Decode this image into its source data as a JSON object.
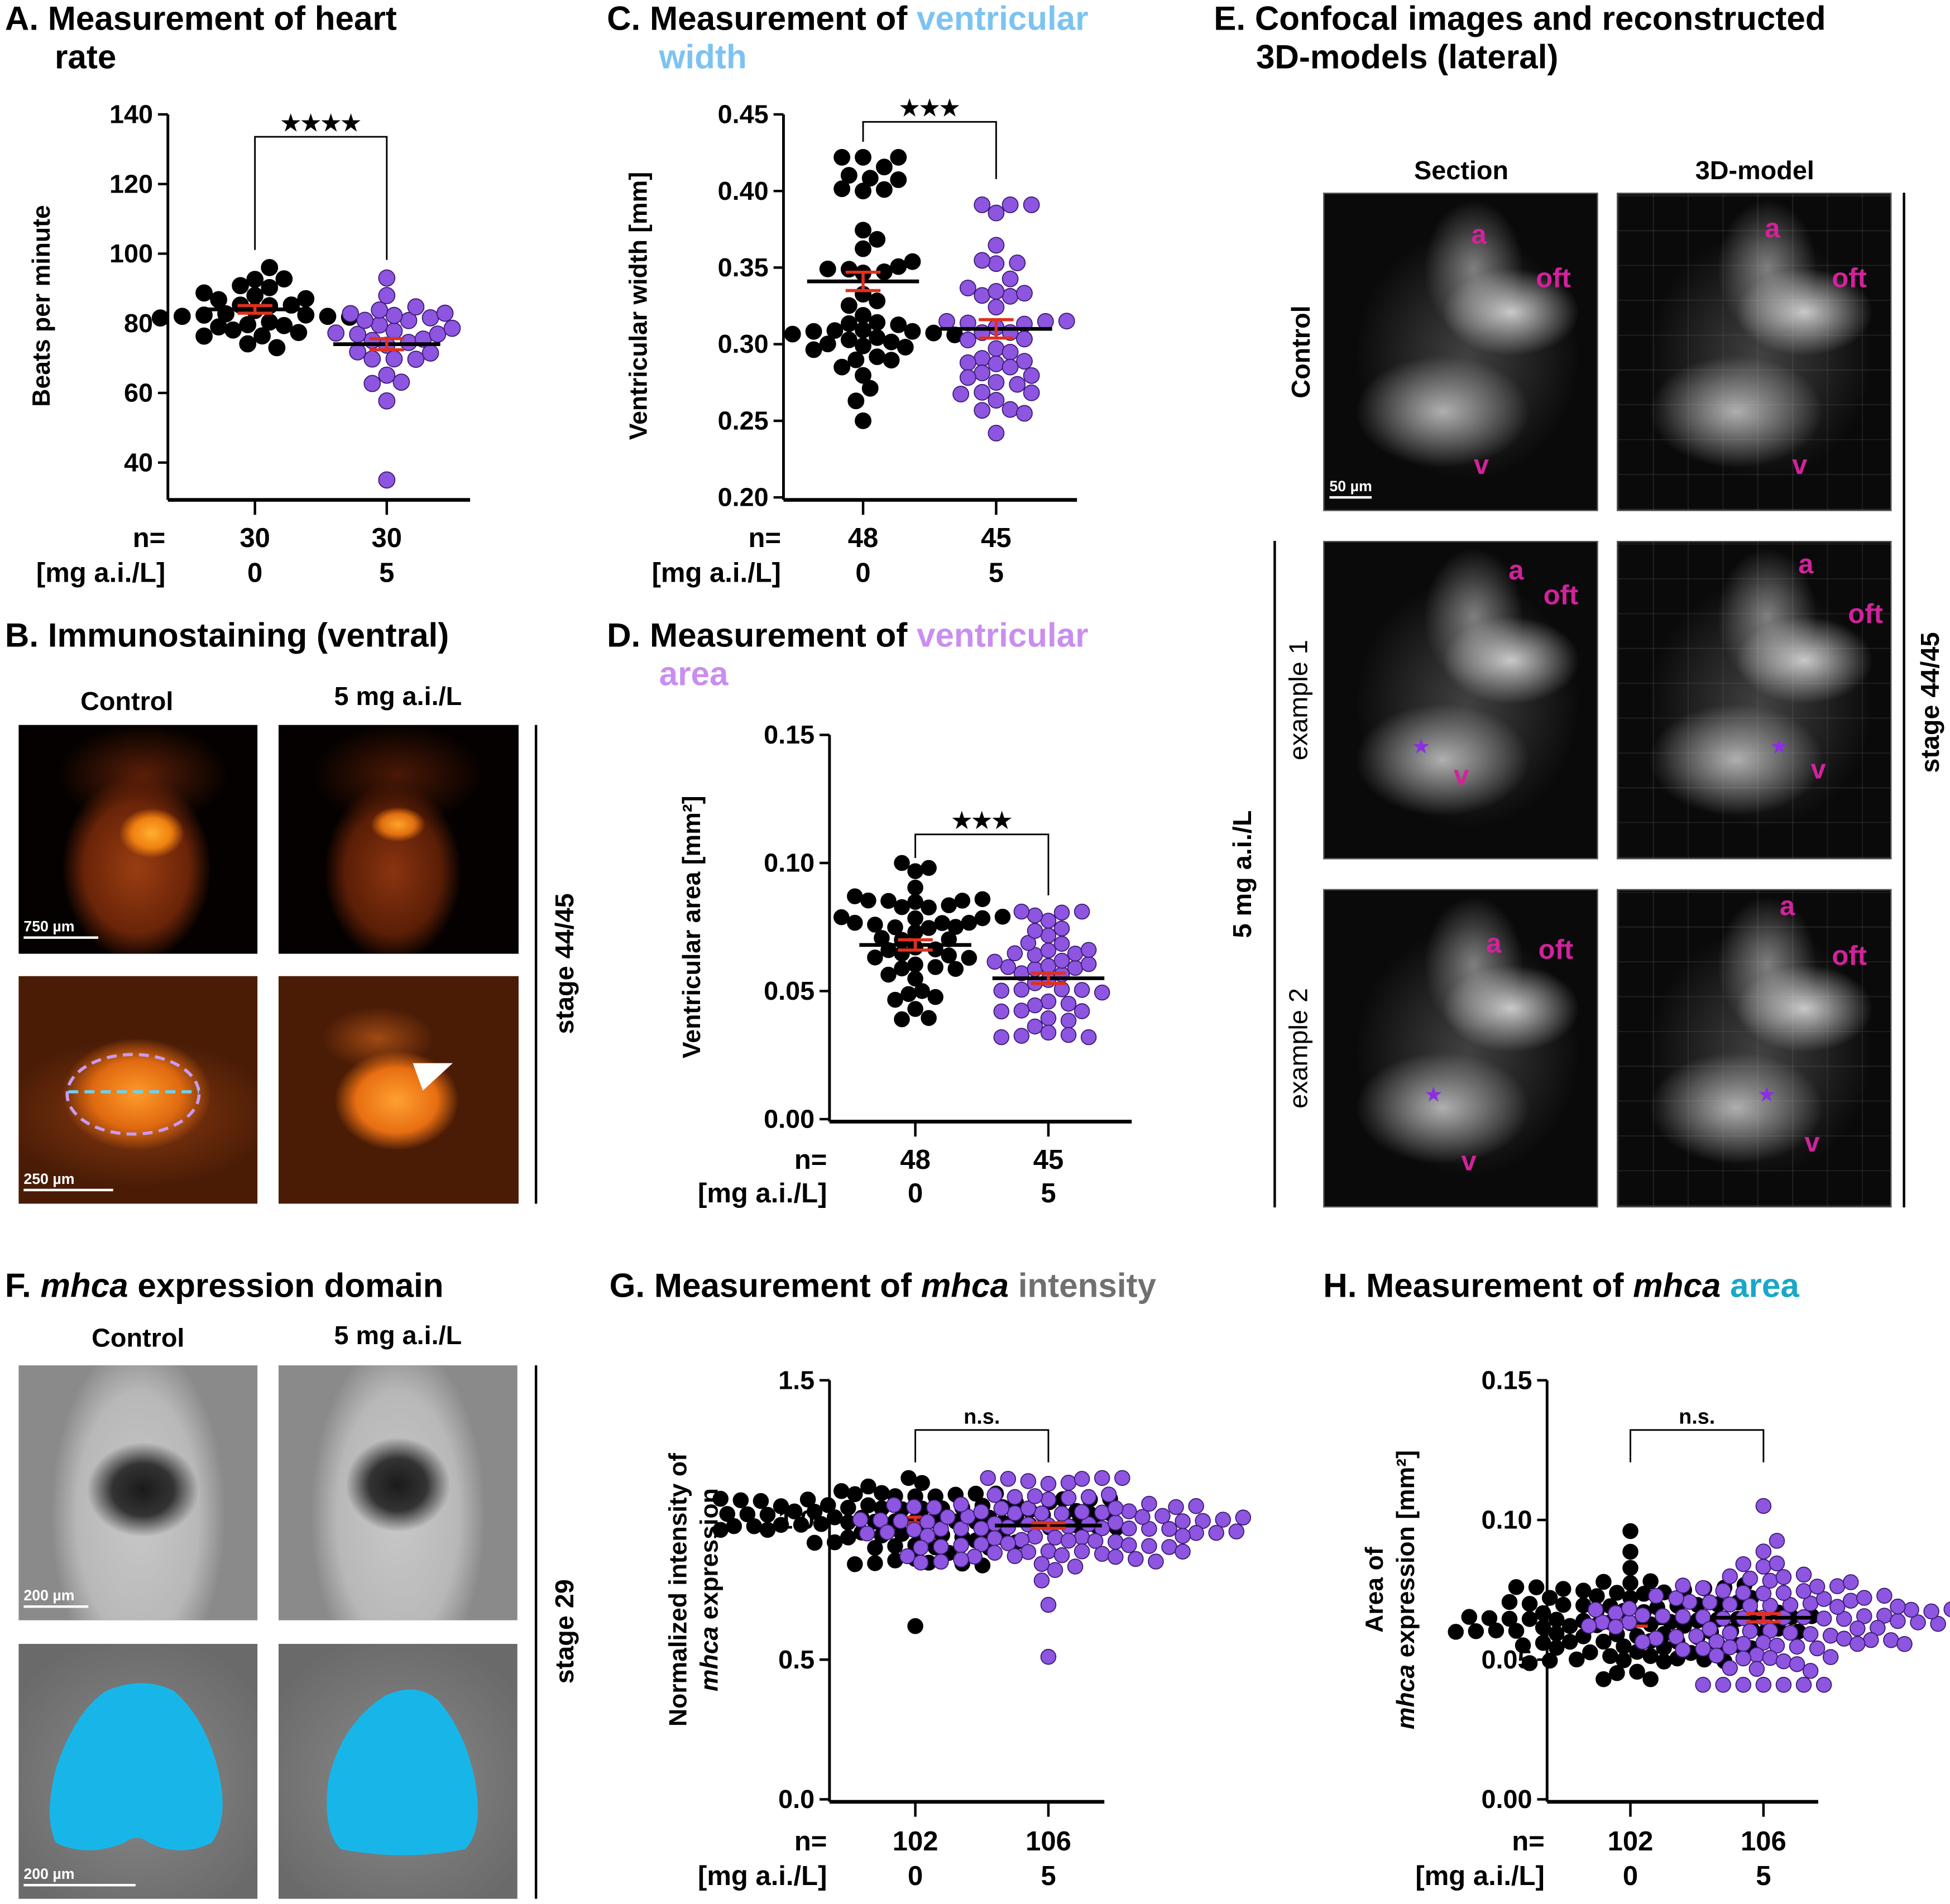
{
  "panels": {
    "A": {
      "label": "A.",
      "title_line1": "Measurement of heart",
      "title_line2": "rate"
    },
    "B": {
      "label": "B.",
      "title": "Immunostaining (ventral)",
      "columns": [
        "Control",
        "5 mg a.i./L"
      ],
      "stage": "stage 44/45",
      "scale_bars": [
        "750 µm",
        "250 µm"
      ]
    },
    "C": {
      "label": "C.",
      "title_pre": "Measurement of ",
      "title_highlight_1": "ventricular",
      "title_highlight_2": "width",
      "highlight_color": "#7cc3f2"
    },
    "D": {
      "label": "D.",
      "title_pre": "Measurement of ",
      "title_highlight_1": "ventricular",
      "title_highlight_2": "area",
      "highlight_color": "#c98ef0"
    },
    "E": {
      "label": "E.",
      "title_line1": "Confocal images and reconstructed",
      "title_line2": "3D-models (lateral)",
      "columns": [
        "Section",
        "3D-model"
      ],
      "rows": [
        "Control",
        "example 1",
        "example 2"
      ],
      "group_label": "5 mg a.i./L",
      "stage": "stage 44/45",
      "scale_bar": "50 µm",
      "annotations": {
        "atrium": "a",
        "outflow_tract": "oft",
        "ventricle": "v",
        "marker": "★"
      },
      "annotation_color": "#d2229c",
      "marker_color": "#8b2fe0"
    },
    "F": {
      "label": "F.",
      "title_italic": "mhca",
      "title_rest": " expression domain",
      "columns": [
        "Control",
        "5 mg a.i./L"
      ],
      "stage": "stage 29",
      "scale_bars": [
        "200 µm",
        "200 µm"
      ],
      "domain_color": "#18b6e8"
    },
    "G": {
      "label": "G.",
      "title_pre": "Measurement of ",
      "title_italic": "mhca",
      "title_highlight": " intensity",
      "highlight_color": "#707070"
    },
    "H": {
      "label": "H.",
      "title_pre": "Measurement of ",
      "title_italic": "mhca",
      "title_highlight": " area",
      "highlight_color": "#1aa8c8"
    }
  },
  "chart_data": [
    {
      "panel": "A",
      "type": "scatter",
      "subtype": "dot-plot",
      "ylabel": "Beats per minute",
      "ylim": [
        30,
        140
      ],
      "yticks": [
        "40",
        "60",
        "80",
        "100",
        "120",
        "140"
      ],
      "categories": [
        "0",
        "5"
      ],
      "xrow_label": "[mg a.i./L]",
      "n_label": "n=",
      "n": [
        "30",
        "30"
      ],
      "significance": "★★★★",
      "series": [
        {
          "values_summary": {
            "mean": 84,
            "sem": 1.1,
            "sd": 5.5,
            "min": 73,
            "max": 96
          },
          "color": "#000000"
        },
        {
          "values_summary": {
            "mean": 74,
            "sem": 1.6,
            "sd": 7,
            "min": 35,
            "max": 93
          },
          "color": "#8d55e0"
        }
      ],
      "mean_color": "#000000",
      "error_color": "#e0301e"
    },
    {
      "panel": "C",
      "type": "scatter",
      "subtype": "dot-plot",
      "ylabel": "Ventricular width [mm]",
      "ylim": [
        0.2,
        0.45
      ],
      "yticks": [
        "0.20",
        "0.25",
        "0.30",
        "0.35",
        "0.40",
        "0.45"
      ],
      "categories": [
        "0",
        "5"
      ],
      "xrow_label": "[mg a.i./L]",
      "n_label": "n=",
      "n": [
        "48",
        "45"
      ],
      "significance": "★★★",
      "series": [
        {
          "values_summary": {
            "mean": 0.341,
            "sem": 0.006,
            "sd": 0.04,
            "min": 0.25,
            "max": 0.422
          },
          "color": "#000000"
        },
        {
          "values_summary": {
            "mean": 0.31,
            "sem": 0.006,
            "sd": 0.037,
            "min": 0.242,
            "max": 0.391
          },
          "color": "#8d55e0"
        }
      ],
      "mean_color": "#000000",
      "error_color": "#e0301e"
    },
    {
      "panel": "D",
      "type": "scatter",
      "subtype": "dot-plot",
      "ylabel": "Ventricular area [mm²]",
      "ylim": [
        0,
        0.15
      ],
      "yticks": [
        "0.00",
        "0.05",
        "0.10",
        "0.15"
      ],
      "categories": [
        "0",
        "5"
      ],
      "xrow_label": "[mg a.i./L]",
      "n_label": "n=",
      "n": [
        "48",
        "45"
      ],
      "significance": "★★★",
      "series": [
        {
          "values_summary": {
            "mean": 0.068,
            "sem": 0.002,
            "sd": 0.014,
            "min": 0.039,
            "max": 0.1
          },
          "color": "#000000"
        },
        {
          "values_summary": {
            "mean": 0.055,
            "sem": 0.002,
            "sd": 0.013,
            "min": 0.032,
            "max": 0.081
          },
          "color": "#8d55e0"
        }
      ],
      "mean_color": "#000000",
      "error_color": "#e0301e"
    },
    {
      "panel": "G",
      "type": "scatter",
      "subtype": "dot-plot",
      "ylabel_line1": "Normalized intensity of",
      "ylabel_italic": "mhca",
      "ylabel_line2_rest": " expression",
      "ylim": [
        0,
        1.5
      ],
      "yticks": [
        "0.0",
        "0.5",
        "1.0",
        "1.5"
      ],
      "categories": [
        "0",
        "5"
      ],
      "xrow_label": "[mg a.i./L]",
      "n_label": "n=",
      "n": [
        "102",
        "106"
      ],
      "significance": "n.s.",
      "series": [
        {
          "values_summary": {
            "mean": 1.0,
            "sem": 0.01,
            "sd": 0.07,
            "min": 0.62,
            "max": 1.15
          },
          "color": "#000000"
        },
        {
          "values_summary": {
            "mean": 0.98,
            "sem": 0.01,
            "sd": 0.09,
            "min": 0.51,
            "max": 1.15
          },
          "color": "#8d55e0"
        }
      ],
      "mean_color": "#000000",
      "error_color": "#e0301e"
    },
    {
      "panel": "H",
      "type": "scatter",
      "subtype": "dot-plot",
      "ylabel_line1": "Area of",
      "ylabel_italic": "mhca",
      "ylabel_line2_rest": " expression [mm²]",
      "ylim": [
        0,
        0.15
      ],
      "yticks": [
        "0.00",
        "0.05",
        "0.10",
        "0.15"
      ],
      "categories": [
        "0",
        "5"
      ],
      "xrow_label": "[mg a.i./L]",
      "n_label": "n=",
      "n": [
        "102",
        "106"
      ],
      "significance": "n.s.",
      "series": [
        {
          "values_summary": {
            "mean": 0.063,
            "sem": 0.001,
            "sd": 0.009,
            "min": 0.043,
            "max": 0.096
          },
          "color": "#000000"
        },
        {
          "values_summary": {
            "mean": 0.065,
            "sem": 0.0015,
            "sd": 0.012,
            "min": 0.041,
            "max": 0.105
          },
          "color": "#8d55e0"
        }
      ],
      "mean_color": "#000000",
      "error_color": "#e0301e"
    }
  ]
}
